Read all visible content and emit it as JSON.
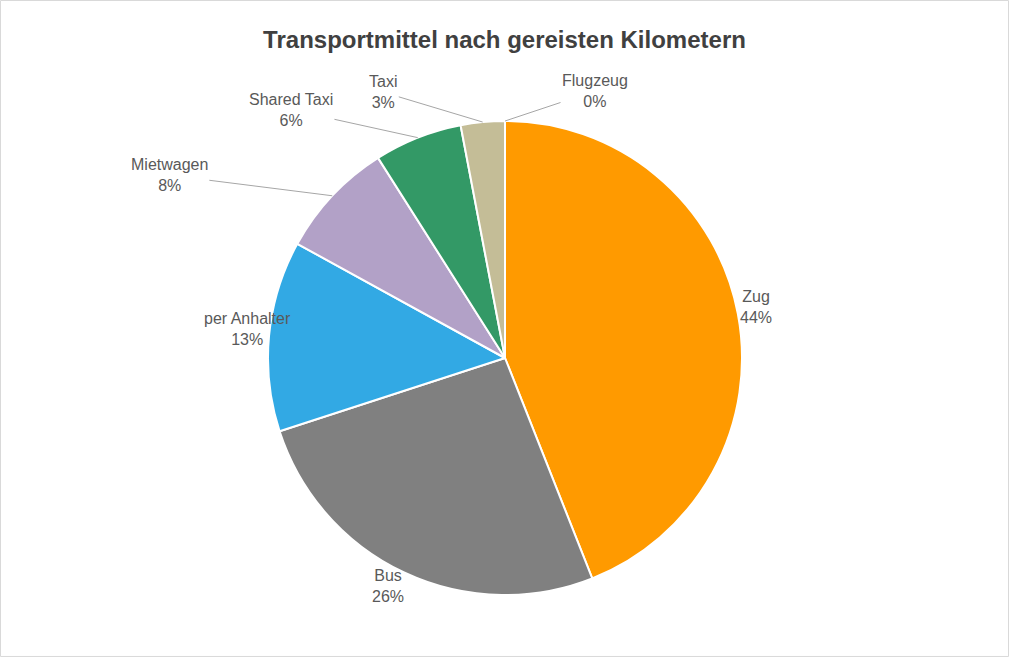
{
  "chart_data": {
    "type": "pie",
    "title": "Transportmittel nach gereisten Kilometern",
    "categories": [
      "Zug",
      "Bus",
      "per Anhalter",
      "Mietwagen",
      "Shared Taxi",
      "Taxi",
      "Flugzeug"
    ],
    "values": [
      44,
      26,
      13,
      8,
      6,
      3,
      0
    ],
    "value_labels": [
      "44%",
      "26%",
      "13%",
      "8%",
      "6%",
      "3%",
      "0%"
    ],
    "colors": [
      "#ff9a00",
      "#808080",
      "#32a9e4",
      "#b2a1c7",
      "#339966",
      "#c4bd97",
      "#4f81bd"
    ],
    "data_labels": true
  }
}
